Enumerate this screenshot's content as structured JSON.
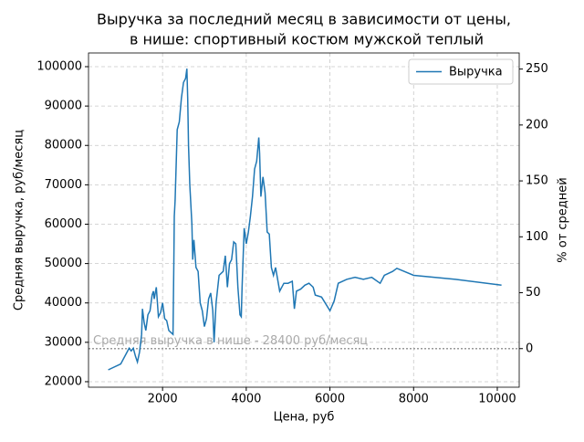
{
  "chart_data": {
    "type": "line",
    "title": [
      "Выручка за последний месяц в зависимости от цены,",
      "в нише: спортивный костюм мужской теплый"
    ],
    "xlabel": "Цена, руб",
    "ylabel": "Средняя выручка, руб/месяц",
    "y2label": "% от средней",
    "xlim": [
      230,
      10524
    ],
    "xticks": [
      2000,
      4000,
      6000,
      8000,
      10000
    ],
    "ylim": [
      18600,
      103480
    ],
    "yticks": [
      20000,
      30000,
      40000,
      50000,
      60000,
      70000,
      80000,
      90000,
      100000
    ],
    "y2lim": [
      -34.5,
      264.4
    ],
    "y2ticks": [
      0,
      50,
      100,
      150,
      200,
      250
    ],
    "grid": true,
    "legend": "upper right",
    "avg_line": 28400,
    "avg_label": "Средняя выручка в нише - 28400 руб/месяц",
    "x": [
      700,
      1000,
      1150,
      1200,
      1250,
      1300,
      1350,
      1400,
      1450,
      1500,
      1520,
      1560,
      1600,
      1650,
      1700,
      1750,
      1780,
      1800,
      1850,
      1900,
      1950,
      2000,
      2050,
      2100,
      2150,
      2200,
      2250,
      2270,
      2280,
      2300,
      2350,
      2400,
      2450,
      2500,
      2550,
      2580,
      2600,
      2620,
      2650,
      2700,
      2720,
      2750,
      2800,
      2850,
      2900,
      2950,
      3000,
      3050,
      3100,
      3150,
      3200,
      3230,
      3280,
      3350,
      3450,
      3500,
      3550,
      3600,
      3650,
      3700,
      3750,
      3800,
      3850,
      3880,
      3900,
      3950,
      4000,
      4050,
      4100,
      4150,
      4200,
      4250,
      4300,
      4320,
      4350,
      4400,
      4450,
      4500,
      4550,
      4600,
      4650,
      4700,
      4800,
      4900,
      5000,
      5100,
      5150,
      5200,
      5300,
      5400,
      5500,
      5600,
      5650,
      5800,
      6000,
      6100,
      6200,
      6400,
      6600,
      6800,
      7000,
      7200,
      7300,
      7500,
      7600,
      8000,
      9000,
      10100
    ],
    "series": [
      {
        "name": "Выручка",
        "color": "#1f77b4",
        "values": [
          23000,
          24500,
          27500,
          28500,
          27800,
          28500,
          26500,
          25000,
          27500,
          32000,
          38500,
          35000,
          33000,
          37000,
          38000,
          42000,
          43000,
          41000,
          44000,
          36500,
          37500,
          40000,
          36000,
          35500,
          33000,
          32500,
          32000,
          50000,
          62000,
          66000,
          84000,
          86000,
          92000,
          96000,
          97000,
          99500,
          92000,
          80000,
          70000,
          60000,
          51000,
          56000,
          49000,
          48000,
          40000,
          38000,
          34000,
          36000,
          41000,
          42500,
          38000,
          30000,
          40000,
          47000,
          48000,
          52000,
          44000,
          50000,
          51000,
          55500,
          55000,
          44000,
          37000,
          36500,
          44000,
          59000,
          55000,
          58000,
          62000,
          67000,
          74000,
          76000,
          82000,
          78000,
          67000,
          72000,
          68000,
          58000,
          57500,
          49000,
          47000,
          49000,
          43000,
          45000,
          45000,
          45500,
          38500,
          43000,
          43500,
          44500,
          45000,
          44000,
          42000,
          41500,
          38000,
          40500,
          45000,
          46000,
          46500,
          46000,
          46500,
          45000,
          47000,
          48000,
          48800,
          47000,
          46000,
          44500
        ]
      }
    ]
  }
}
